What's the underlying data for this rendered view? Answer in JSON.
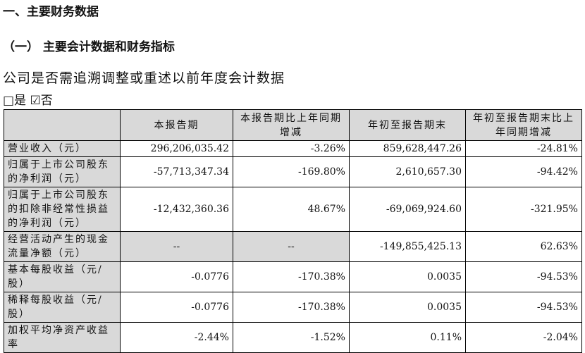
{
  "header": {
    "title": "一、主要财务数据",
    "subtitle": "（一） 主要会计数据和财务指标"
  },
  "question": {
    "text": "公司是否需追溯调整或重述以前年度会计数据",
    "answer": "□是 ☑否"
  },
  "table": {
    "headers": [
      "",
      "本报告期",
      "本报告期比上年同期增减",
      "年初至报告期末",
      "年初至报告期末比上年同期增减"
    ],
    "rows": [
      [
        "营业收入（元）",
        "296,206,035.42",
        "-3.26%",
        "859,628,447.26",
        "-24.81%"
      ],
      [
        "归属于上市公司股东的净利润（元）",
        "-57,713,347.34",
        "-169.80%",
        "2,610,657.30",
        "-94.42%"
      ],
      [
        "归属于上市公司股东的扣除非经常性损益的净利润（元）",
        "-12,432,360.36",
        "48.67%",
        "-69,069,924.60",
        "-321.95%"
      ],
      [
        "经营活动产生的现金流量净额（元）",
        "--",
        "--",
        "-149,855,425.13",
        "62.63%"
      ],
      [
        "基本每股收益（元/股）",
        "-0.0776",
        "-170.38%",
        "0.0035",
        "-94.53%"
      ],
      [
        "稀释每股收益（元/股）",
        "-0.0776",
        "-170.38%",
        "0.0035",
        "-94.53%"
      ],
      [
        "加权平均净资产收益率",
        "-2.44%",
        "-1.52%",
        "0.11%",
        "-2.04%"
      ]
    ]
  }
}
